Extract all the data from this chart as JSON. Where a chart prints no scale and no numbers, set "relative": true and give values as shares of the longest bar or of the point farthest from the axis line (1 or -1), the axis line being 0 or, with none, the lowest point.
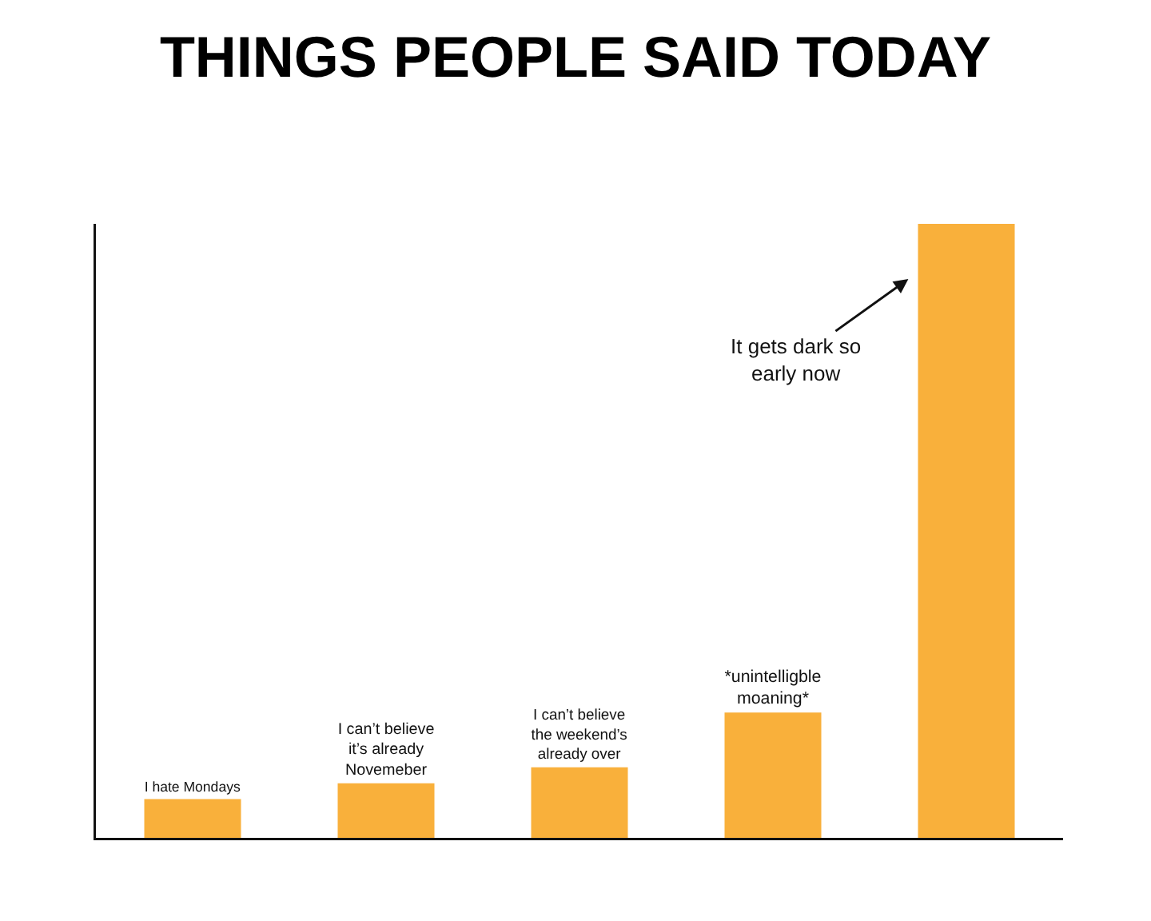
{
  "chart_data": {
    "type": "bar",
    "title": "THINGS PEOPLE SAID TODAY",
    "categories": [
      "I hate Mondays",
      "I can’t believe it’s already Novemeber",
      "I can’t believe the weekend’s already over",
      "*unintelligble moaning*",
      null
    ],
    "annotations": [
      "It gets dark so early now"
    ],
    "values": [
      0.063,
      0.089,
      0.115,
      0.204,
      1
    ],
    "color": "#f9b03b",
    "relative": true
  }
}
